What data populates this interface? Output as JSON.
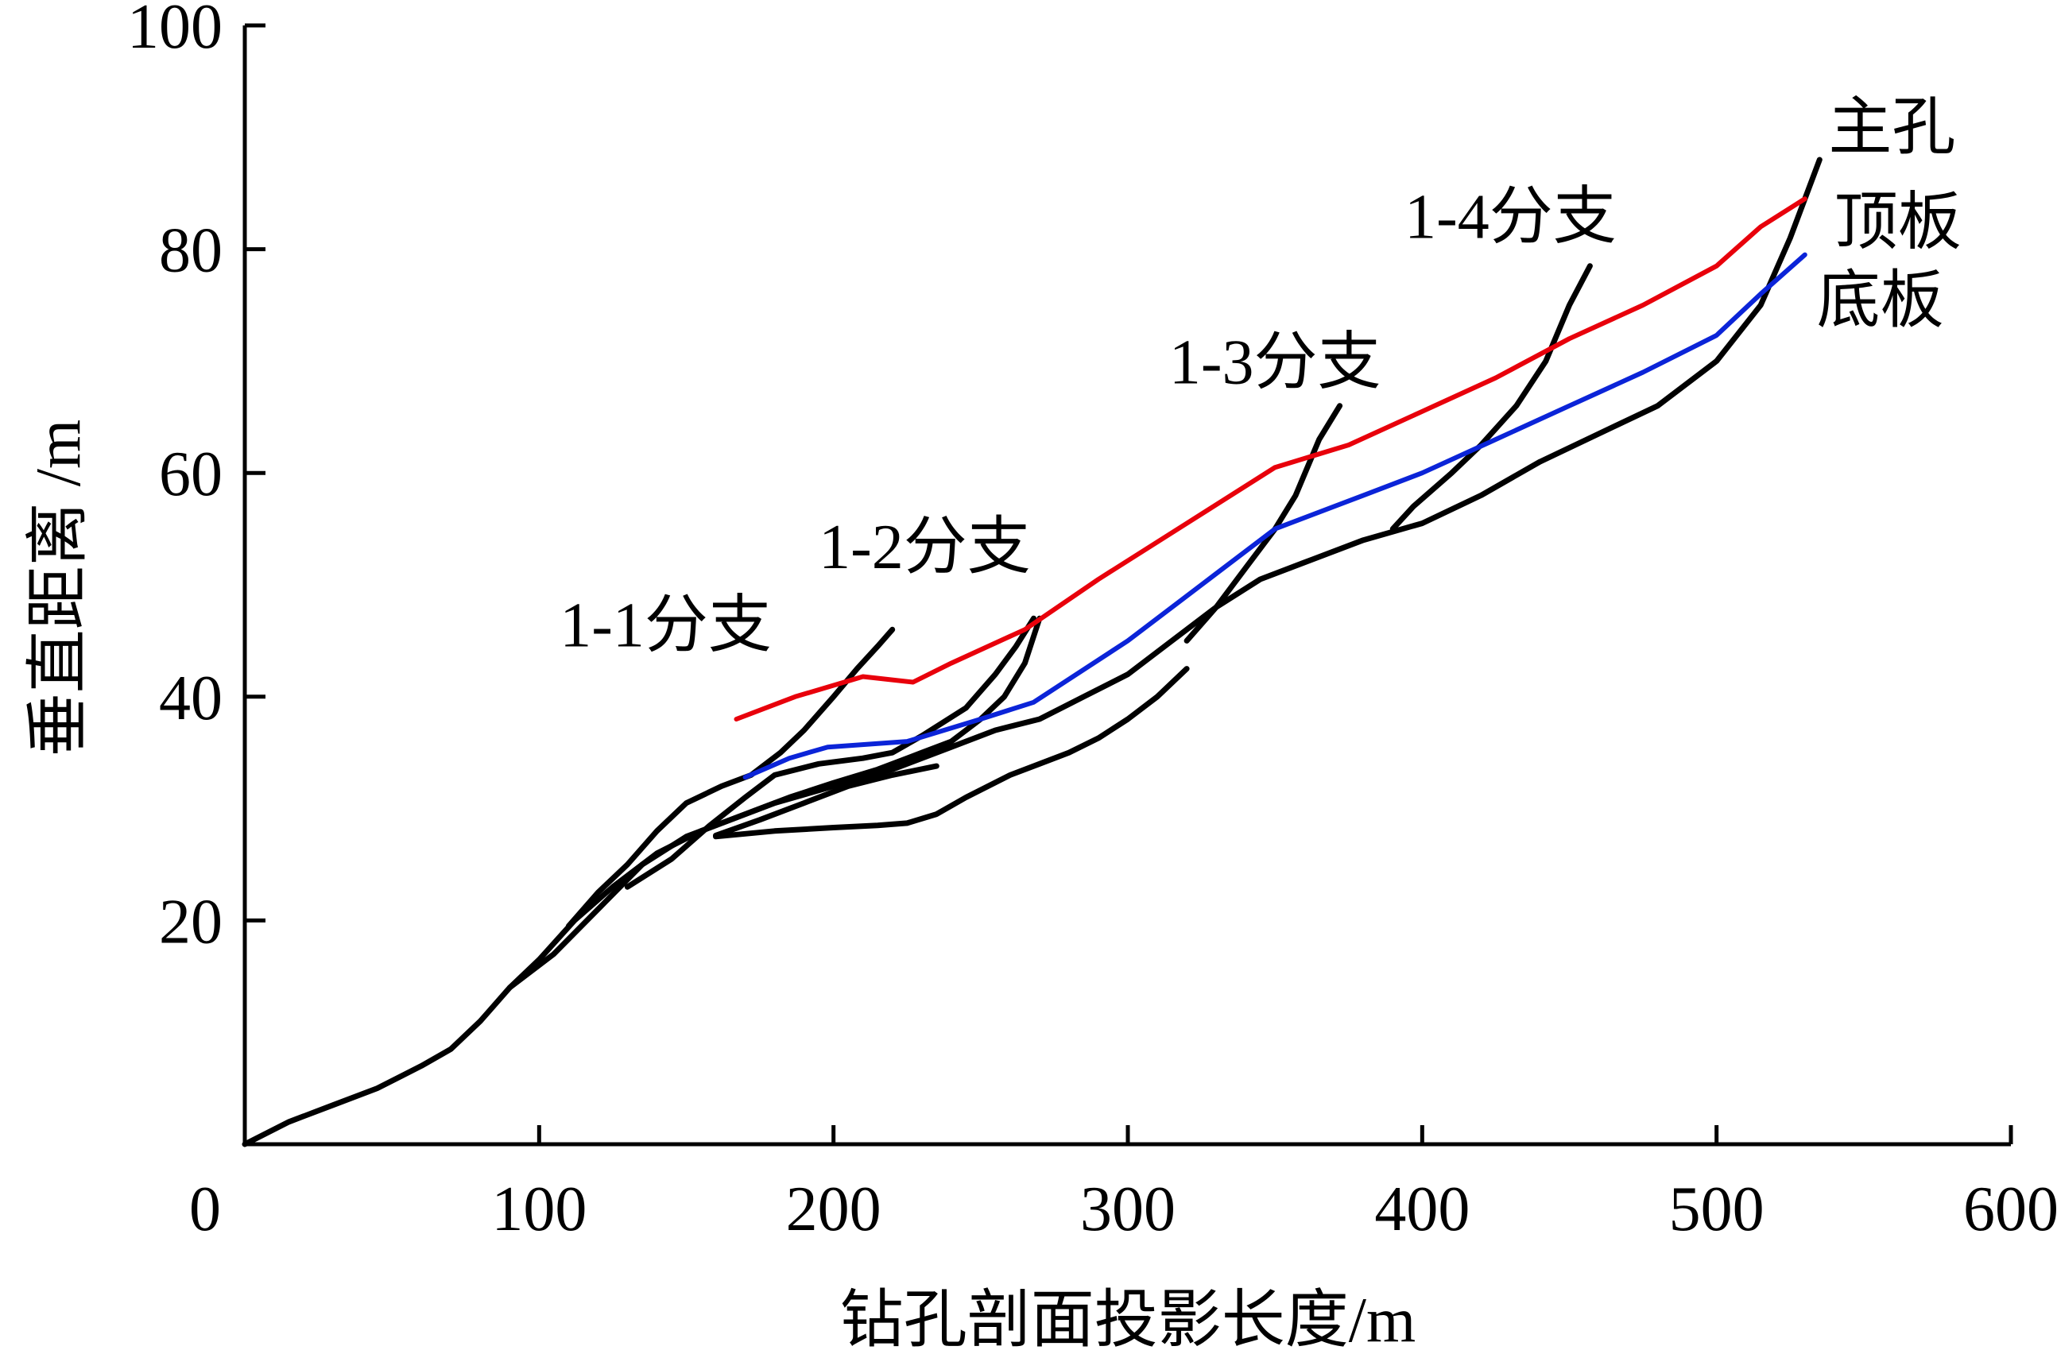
{
  "chart_data": {
    "type": "line",
    "title": "",
    "xlabel": "钻孔剖面投影长度/m",
    "ylabel": "垂直距离 /m",
    "xlim": [
      0,
      600
    ],
    "ylim": [
      0,
      100
    ],
    "x_ticks": [
      "0",
      "100",
      "200",
      "300",
      "400",
      "500",
      "600"
    ],
    "y_ticks": [
      "20",
      "40",
      "60",
      "80",
      "100"
    ],
    "grid": false,
    "legend": "none",
    "series": [
      {
        "name": "主孔",
        "color": "#000000",
        "points": [
          [
            0,
            0
          ],
          [
            15,
            2
          ],
          [
            30,
            3.5
          ],
          [
            45,
            5
          ],
          [
            60,
            7
          ],
          [
            70,
            8.5
          ],
          [
            80,
            11
          ],
          [
            90,
            14
          ],
          [
            105,
            17
          ],
          [
            120,
            21
          ],
          [
            135,
            25
          ],
          [
            150,
            27.5
          ],
          [
            165,
            29
          ],
          [
            180,
            30.5
          ],
          [
            200,
            32
          ],
          [
            220,
            33.5
          ],
          [
            240,
            35.5
          ],
          [
            255,
            37
          ],
          [
            270,
            38
          ],
          [
            285,
            40
          ],
          [
            300,
            42
          ],
          [
            315,
            45
          ],
          [
            330,
            48
          ],
          [
            345,
            50.5
          ],
          [
            360,
            52
          ],
          [
            380,
            54
          ],
          [
            400,
            55.5
          ],
          [
            420,
            58
          ],
          [
            440,
            61
          ],
          [
            460,
            63.5
          ],
          [
            480,
            66
          ],
          [
            500,
            70
          ],
          [
            515,
            75
          ],
          [
            525,
            81
          ],
          [
            535,
            88
          ]
        ]
      },
      {
        "name": "1-1分支",
        "color": "#000000",
        "points": [
          [
            160,
            27.5
          ],
          [
            180,
            28
          ],
          [
            200,
            28.3
          ],
          [
            215,
            28.5
          ],
          [
            225,
            28.7
          ],
          [
            235,
            29.5
          ],
          [
            245,
            31
          ],
          [
            260,
            33
          ],
          [
            270,
            34
          ],
          [
            280,
            35
          ],
          [
            290,
            36.3
          ],
          [
            300,
            38
          ],
          [
            310,
            40
          ],
          [
            320,
            42.5
          ]
        ]
      },
      {
        "name": "1-2分支",
        "color": "#000000",
        "points": [
          [
            160,
            27.6
          ],
          [
            175,
            29
          ],
          [
            190,
            30.5
          ],
          [
            205,
            32
          ],
          [
            220,
            33
          ],
          [
            235,
            33.8
          ]
        ]
      },
      {
        "name": "1-3分支",
        "color": "#000000",
        "points": [
          [
            90,
            14
          ],
          [
            100,
            16.5
          ],
          [
            112,
            20
          ],
          [
            125,
            23
          ],
          [
            140,
            26
          ],
          [
            155,
            28
          ],
          [
            170,
            29.5
          ],
          [
            185,
            31
          ],
          [
            200,
            32.3
          ],
          [
            215,
            33.5
          ],
          [
            230,
            35
          ],
          [
            240,
            36
          ],
          [
            250,
            38
          ],
          [
            258,
            40
          ],
          [
            265,
            43
          ],
          [
            270,
            47
          ]
        ]
      },
      {
        "name": "1-4分支",
        "color": "#000000",
        "points": [
          [
            130,
            23
          ],
          [
            145,
            25.5
          ],
          [
            158,
            28.5
          ],
          [
            170,
            31
          ],
          [
            180,
            33
          ],
          [
            195,
            34
          ],
          [
            210,
            34.5
          ],
          [
            220,
            35
          ],
          [
            230,
            36.5
          ],
          [
            245,
            39
          ],
          [
            255,
            42
          ],
          [
            262,
            44.5
          ],
          [
            268,
            47
          ]
        ]
      },
      {
        "name": "",
        "color": "#000000",
        "points": [
          [
            110,
            19.5
          ],
          [
            120,
            22.5
          ],
          [
            130,
            25
          ],
          [
            140,
            28
          ],
          [
            150,
            30.5
          ],
          [
            162,
            32
          ],
          [
            172,
            33
          ],
          [
            182,
            35
          ],
          [
            190,
            37
          ],
          [
            200,
            40
          ],
          [
            208,
            42.5
          ],
          [
            215,
            44.5
          ],
          [
            220,
            46
          ]
        ]
      },
      {
        "name": "",
        "color": "#000000",
        "points": [
          [
            320,
            45
          ],
          [
            330,
            48
          ],
          [
            340,
            51.5
          ],
          [
            350,
            55
          ],
          [
            357,
            58
          ],
          [
            365,
            63
          ],
          [
            372,
            66
          ]
        ]
      },
      {
        "name": "",
        "color": "#000000",
        "points": [
          [
            390,
            55
          ],
          [
            397,
            57
          ],
          [
            410,
            60
          ],
          [
            420,
            62.5
          ],
          [
            432,
            66
          ],
          [
            442,
            70
          ],
          [
            450,
            75
          ],
          [
            457,
            78.5
          ]
        ]
      },
      {
        "name": "顶板",
        "color": "#e8000b",
        "points": [
          [
            167,
            38
          ],
          [
            187,
            40
          ],
          [
            210,
            41.8
          ],
          [
            227,
            41.3
          ],
          [
            240,
            43
          ],
          [
            265,
            46
          ],
          [
            290,
            50.5
          ],
          [
            320,
            55.5
          ],
          [
            350,
            60.5
          ],
          [
            375,
            62.5
          ],
          [
            400,
            65.5
          ],
          [
            425,
            68.5
          ],
          [
            450,
            72
          ],
          [
            475,
            75
          ],
          [
            500,
            78.5
          ],
          [
            515,
            82
          ],
          [
            530,
            84.5
          ]
        ]
      },
      {
        "name": "底板",
        "color": "#0b24d8",
        "points": [
          [
            170,
            32.8
          ],
          [
            185,
            34.5
          ],
          [
            198,
            35.5
          ],
          [
            225,
            36
          ],
          [
            250,
            38
          ],
          [
            268,
            39.5
          ],
          [
            300,
            45
          ],
          [
            325,
            50
          ],
          [
            350,
            55
          ],
          [
            380,
            58
          ],
          [
            400,
            60
          ],
          [
            425,
            63
          ],
          [
            450,
            66
          ],
          [
            475,
            69
          ],
          [
            500,
            72.3
          ],
          [
            515,
            76
          ],
          [
            530,
            79.5
          ]
        ]
      }
    ],
    "annotations": [
      {
        "text": "主孔",
        "x": 538,
        "y": 89
      },
      {
        "text": "顶板",
        "x": 540,
        "y": 80.5
      },
      {
        "text": "底板",
        "x": 534,
        "y": 73.5
      },
      {
        "text": "1-1分支",
        "x": 107,
        "y": 44.5
      },
      {
        "text": "1-2分支",
        "x": 195,
        "y": 51.5
      },
      {
        "text": "1-3分支",
        "x": 314,
        "y": 68
      },
      {
        "text": "1-4分支",
        "x": 394,
        "y": 81
      }
    ]
  }
}
